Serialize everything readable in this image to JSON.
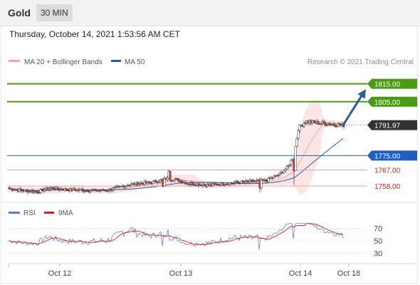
{
  "header": {
    "instrument": "Gold",
    "timeframe": "30 MIN",
    "datetime": "Thursday, October 14, 2021 1:53:56 AM CET"
  },
  "colors": {
    "bollinger": "#f4a3a3",
    "bollinger_fill": "#fbe1e1",
    "ma50": "#2e5aa0",
    "target_line": "#4a9a14",
    "support_line": "#1f5fbf",
    "minor_line": "#f2a0a0",
    "arrow": "#2e5aa0",
    "candle_up": "#ffffff",
    "candle_down": "#d63b3b",
    "candle_outline": "#333333",
    "rsi": "#5d7fd6",
    "rsi_ma": "#d12020"
  },
  "chart_data": [
    {
      "type": "candlestick",
      "title": "Gold",
      "legend": [
        {
          "label": "MA 20 + Bollinger Bands",
          "color": "#f4a3a3"
        },
        {
          "label": "MA 50",
          "color": "#2e5aa0"
        }
      ],
      "copyright": "Research © 2021 Trading Central",
      "ylim": [
        1750.5,
        1822
      ],
      "x_ticks": [
        {
          "label": "Oct 12",
          "index": 37
        },
        {
          "label": "Oct 13",
          "index": 122
        },
        {
          "label": "Oct 14",
          "index": 206
        },
        {
          "label": "Oct 18",
          "index": 240
        }
      ],
      "levels": [
        {
          "value": 1815.0,
          "label": "1815.00",
          "kind": "resistance-target"
        },
        {
          "value": 1805.0,
          "label": "1805.00",
          "kind": "resistance-target"
        },
        {
          "value": 1791.97,
          "label": "1791.97",
          "kind": "last-price"
        },
        {
          "value": 1775.0,
          "label": "1775.00",
          "kind": "pivot"
        },
        {
          "value": 1767.0,
          "label": "1767.00",
          "kind": "support"
        },
        {
          "value": 1758.0,
          "label": "1758.00",
          "kind": "support"
        }
      ],
      "arrow": {
        "from_index": 235,
        "from_value": 1792,
        "to_index": 251,
        "to_value": 1812
      },
      "close_approx": [
        [
          0,
          1756.5
        ],
        [
          10,
          1755.5
        ],
        [
          20,
          1754.8
        ],
        [
          28,
          1757
        ],
        [
          40,
          1756
        ],
        [
          60,
          1755.5
        ],
        [
          70,
          1755.8
        ],
        [
          85,
          1759
        ],
        [
          100,
          1760
        ],
        [
          110,
          1762
        ],
        [
          118,
          1761.5
        ],
        [
          125,
          1759.5
        ],
        [
          140,
          1758.5
        ],
        [
          160,
          1760
        ],
        [
          180,
          1761
        ],
        [
          190,
          1764.5
        ],
        [
          196,
          1769
        ],
        [
          200,
          1775
        ],
        [
          203,
          1790
        ],
        [
          208,
          1794
        ],
        [
          220,
          1793
        ],
        [
          234,
          1792
        ]
      ]
    },
    {
      "type": "line",
      "title": "RSI",
      "series": [
        {
          "name": "RSI",
          "color": "#5d7fd6"
        },
        {
          "name": "9MA",
          "color": "#d12020"
        }
      ],
      "ylim": [
        20,
        80
      ],
      "y_ticks": [
        70,
        50,
        30
      ],
      "guides": [
        70,
        50,
        30
      ]
    }
  ]
}
